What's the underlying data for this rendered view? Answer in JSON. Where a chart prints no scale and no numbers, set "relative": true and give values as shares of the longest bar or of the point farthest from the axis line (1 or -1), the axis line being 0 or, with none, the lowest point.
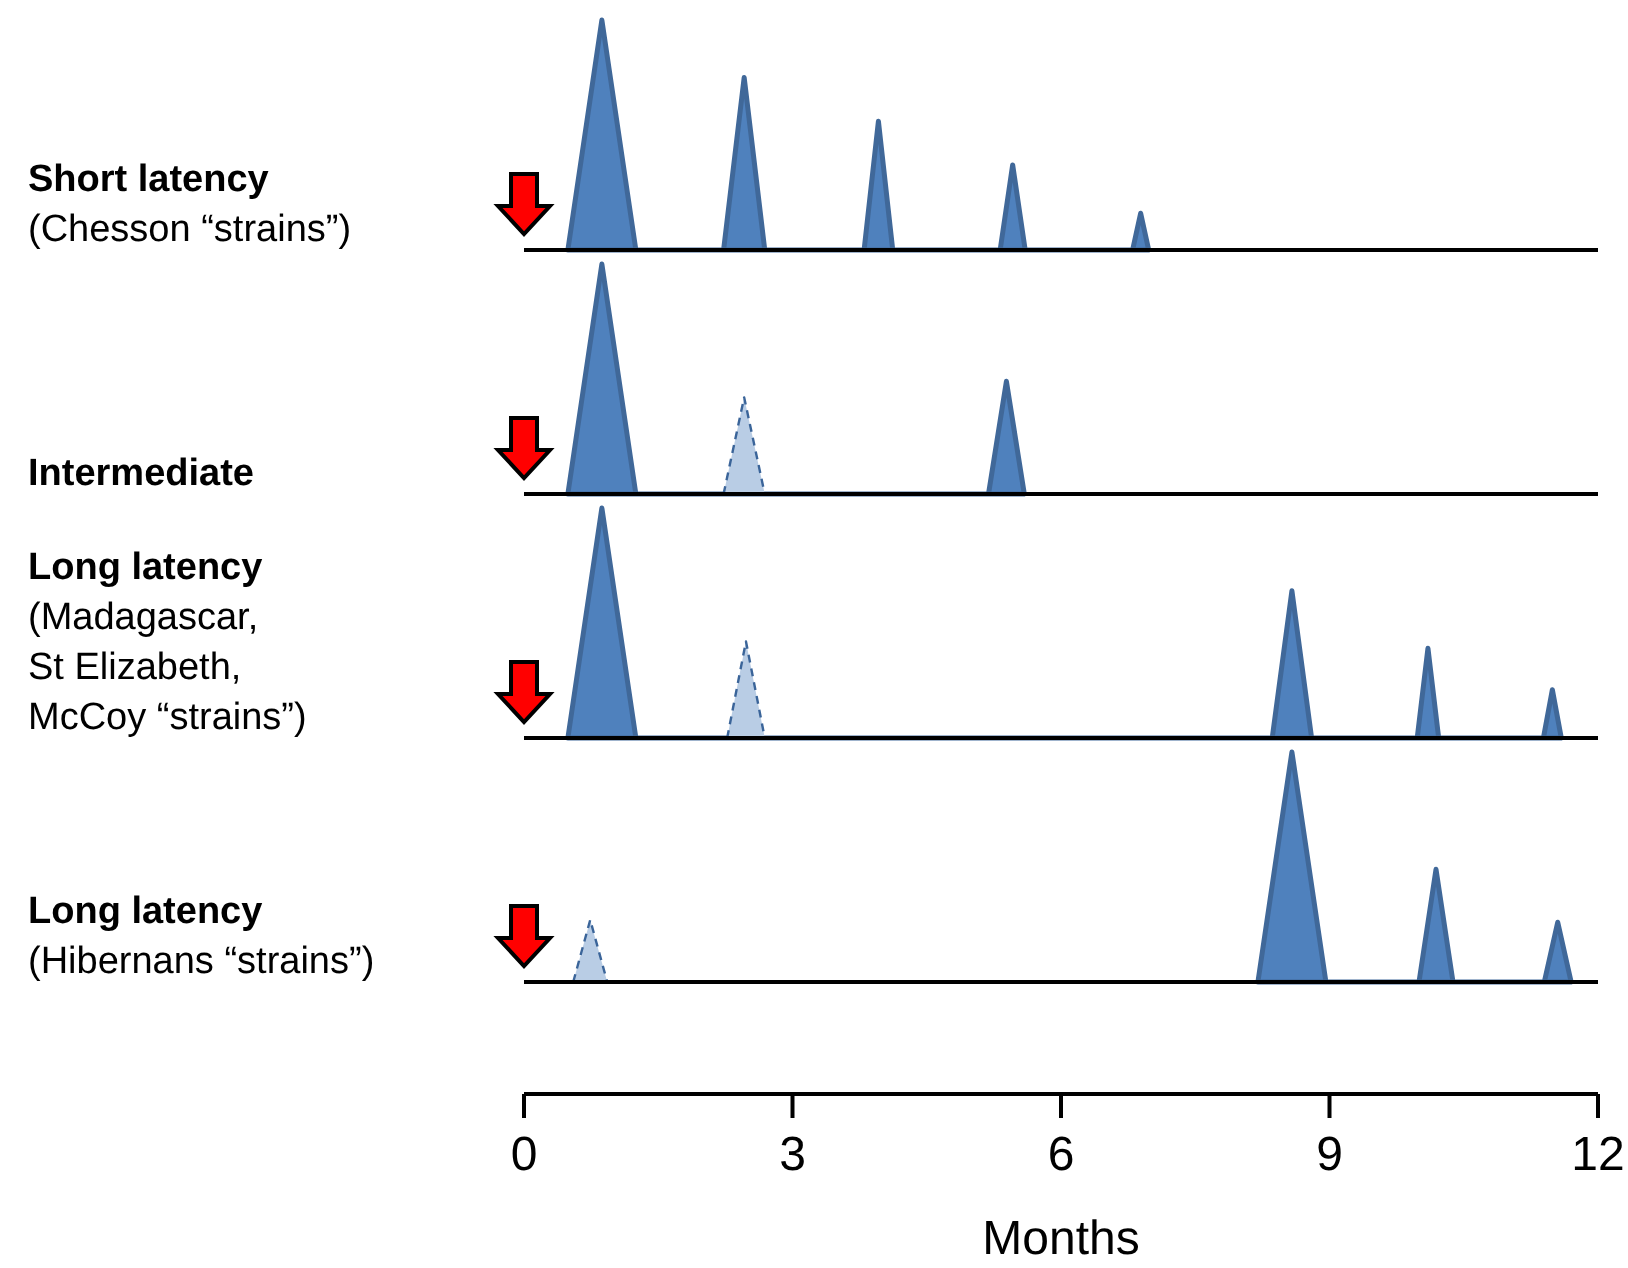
{
  "chart_data": [
    {
      "type": "area",
      "ylabel": "Short latency",
      "subtitle": "(Chesson “strains”)",
      "relative": true,
      "xlim": [
        0,
        12
      ],
      "tick_labels": false,
      "marker": "none",
      "series": [
        {
          "color": "#4f81bd",
          "line_style": "solid",
          "x": [
            0.49,
            0.87,
            1.25,
            2.23,
            2.46,
            2.69,
            3.8,
            3.96,
            4.12,
            5.32,
            5.46,
            5.6,
            6.8,
            6.89,
            6.98
          ],
          "values": [
            0,
            1,
            0,
            0,
            0.75,
            0,
            0,
            0.56,
            0,
            0,
            0.37,
            0,
            0,
            0.16,
            0
          ]
        }
      ]
    },
    {
      "type": "area",
      "ylabel": "Intermediate",
      "relative": true,
      "xlim": [
        0,
        12
      ],
      "tick_labels": false,
      "marker": "none",
      "series": [
        {
          "color": "#4f81bd",
          "line_style": "solid",
          "x": [
            0.49,
            0.87,
            1.25,
            5.19,
            5.39,
            5.59
          ],
          "values": [
            0,
            1,
            0,
            0,
            0.49,
            0
          ]
        },
        {
          "color": "#b9cde5",
          "line_style": "dashed",
          "x": [
            2.23,
            2.46,
            2.69
          ],
          "values": [
            0,
            0.42,
            0
          ]
        }
      ]
    },
    {
      "type": "area",
      "ylabel": "Long latency",
      "subtitle": "(Madagascar, St Elizabeth, McCoy “strains”)",
      "relative": true,
      "xlim": [
        0,
        12
      ],
      "tick_labels": false,
      "marker": "none",
      "series": [
        {
          "color": "#4f81bd",
          "line_style": "solid",
          "x": [
            0.49,
            0.87,
            1.25,
            8.36,
            8.58,
            8.8,
            9.98,
            10.1,
            10.22,
            11.39,
            11.49,
            11.59
          ],
          "values": [
            0,
            1,
            0,
            0,
            0.64,
            0,
            0,
            0.39,
            0,
            0,
            0.21,
            0
          ]
        },
        {
          "color": "#b9cde5",
          "line_style": "dashed",
          "x": [
            2.27,
            2.48,
            2.69
          ],
          "values": [
            0,
            0.42,
            0
          ]
        }
      ]
    },
    {
      "type": "area",
      "ylabel": "Long latency",
      "subtitle": "(Hibernans “strains”)",
      "relative": true,
      "xlim": [
        0,
        12
      ],
      "xticks": [
        0,
        3,
        6,
        9,
        12
      ],
      "xlabel": "Months",
      "tick_labels": "x",
      "marker": "none",
      "series": [
        {
          "color": "#4f81bd",
          "line_style": "solid",
          "x": [
            8.2,
            8.58,
            8.96,
            10.0,
            10.19,
            10.38,
            11.4,
            11.55,
            11.7
          ],
          "values": [
            0,
            1,
            0,
            0,
            0.49,
            0,
            0,
            0.26,
            0
          ]
        },
        {
          "color": "#b9cde5",
          "line_style": "dashed",
          "x": [
            0.55,
            0.74,
            0.93
          ],
          "values": [
            0,
            0.27,
            0
          ]
        }
      ]
    }
  ]
}
